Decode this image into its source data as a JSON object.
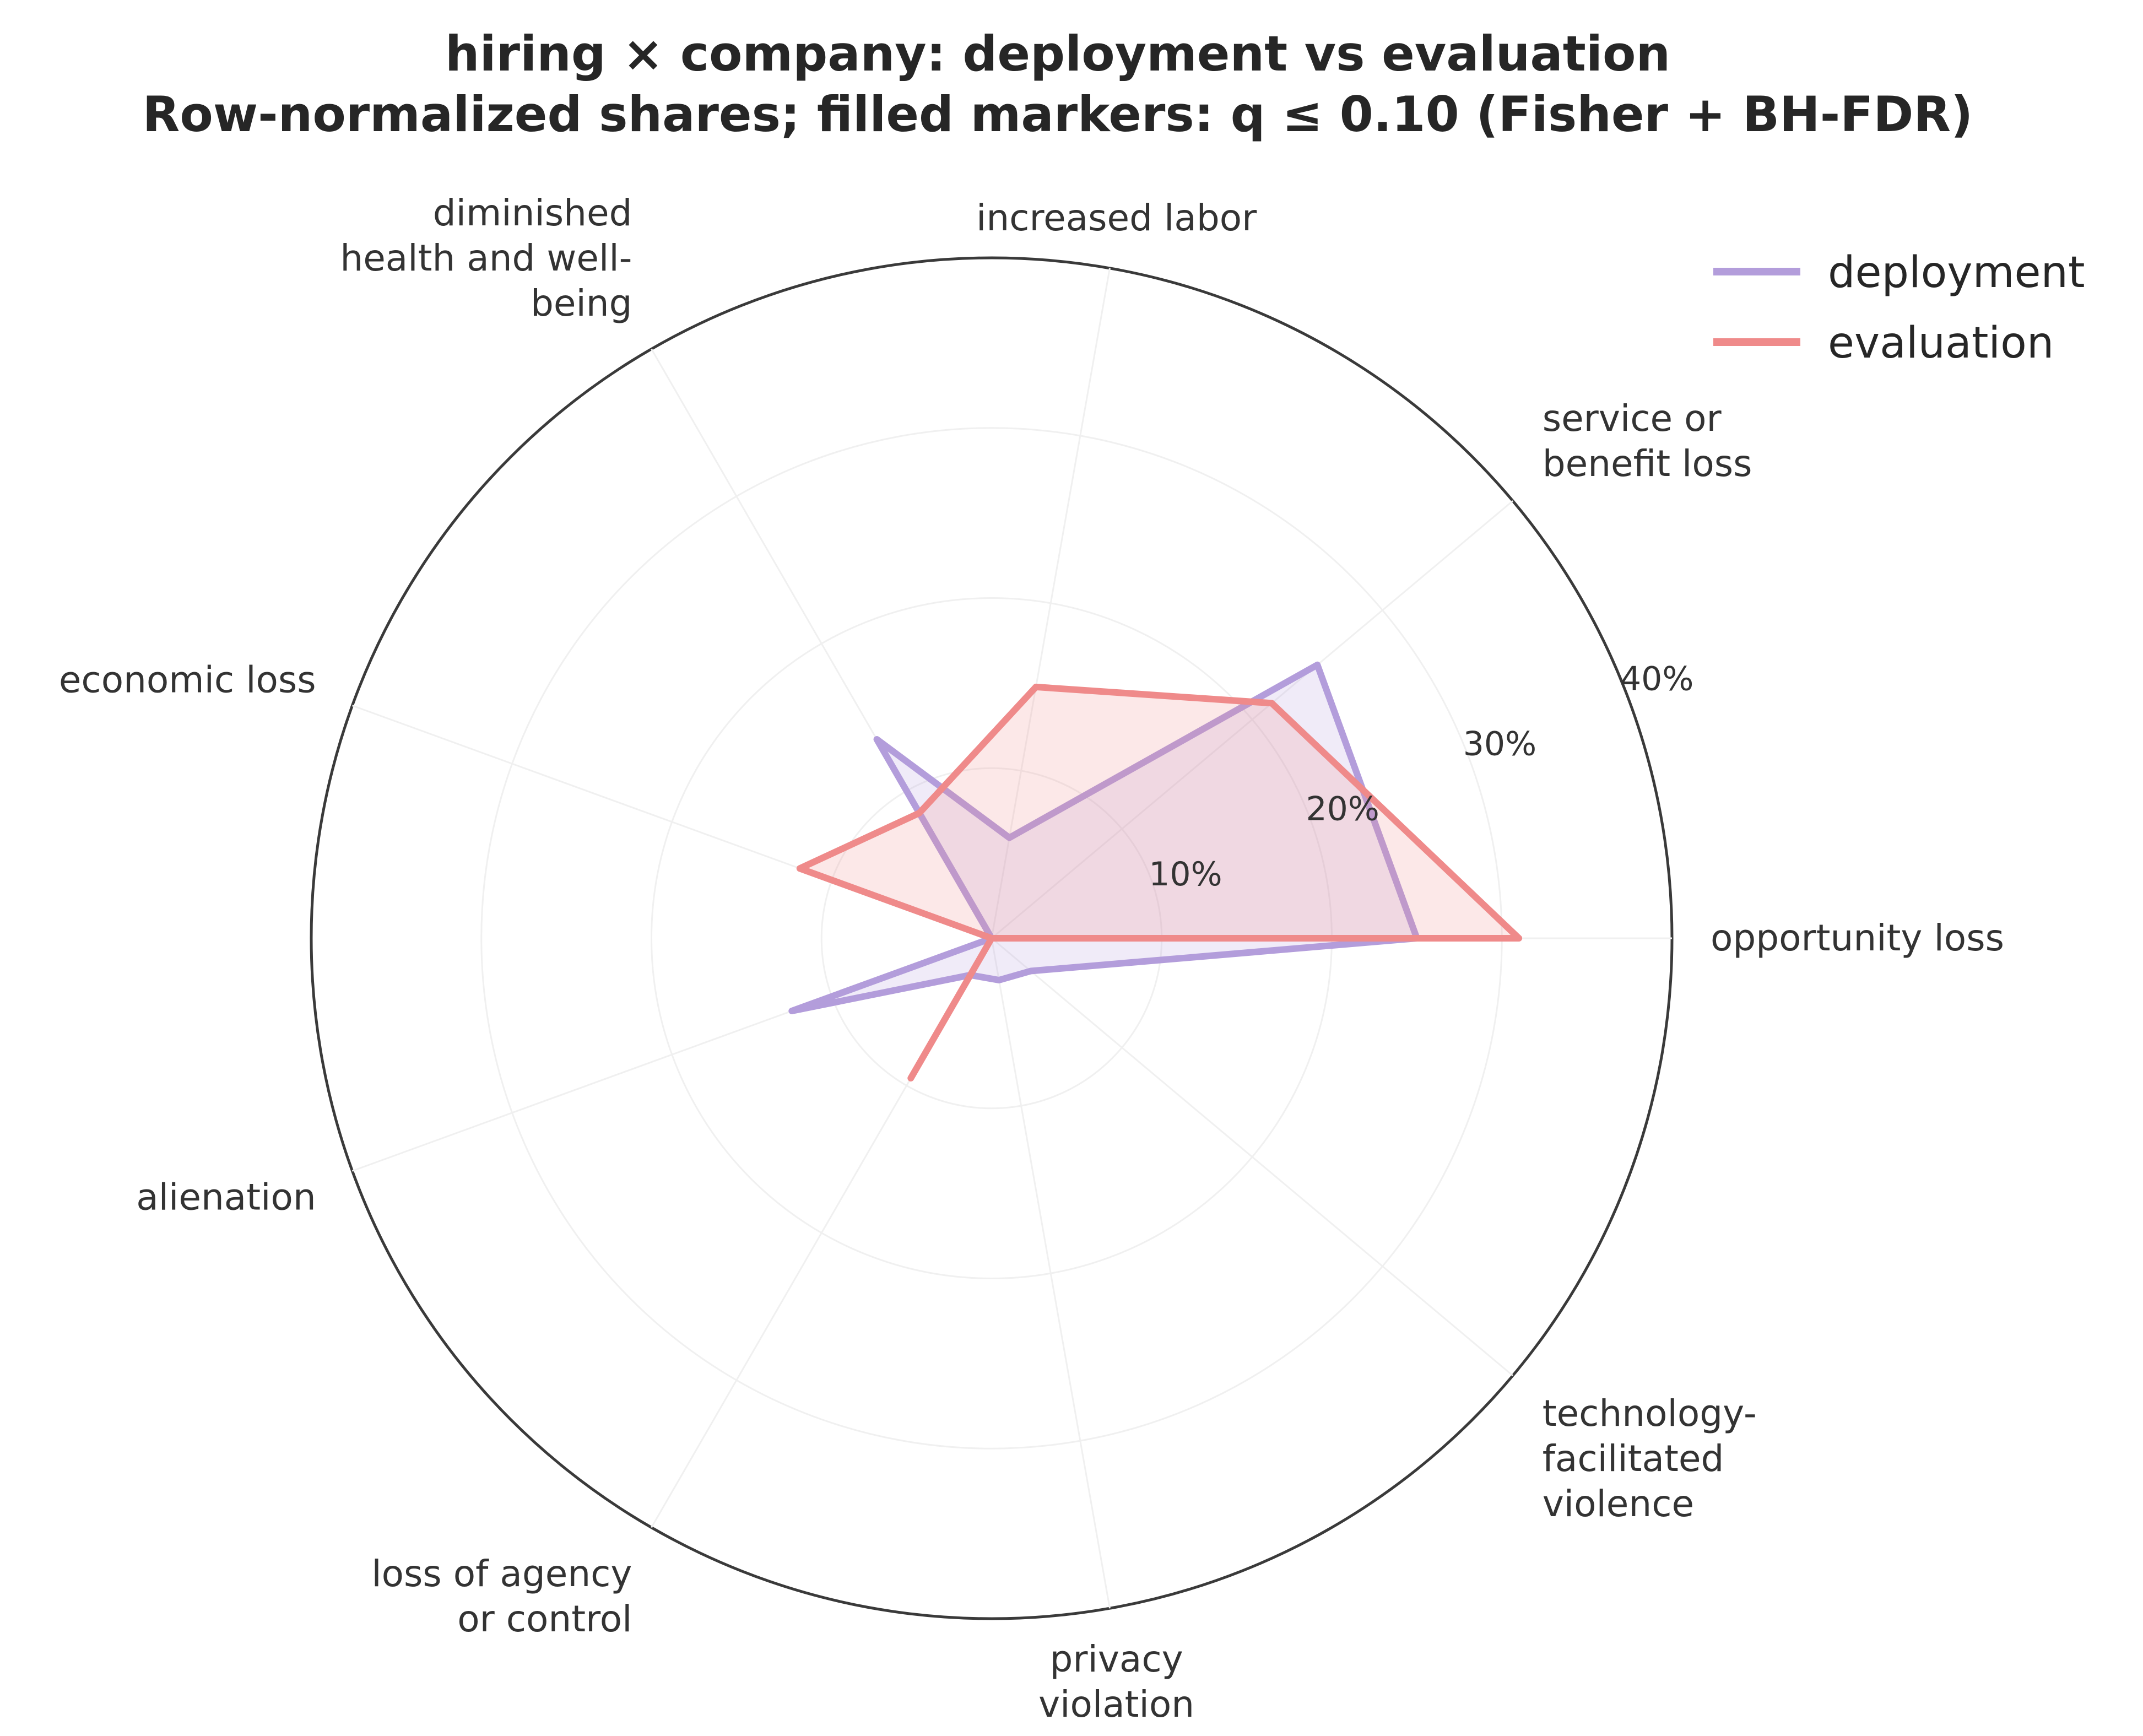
{
  "chart_data": {
    "type": "radar",
    "title": "hiring × company: deployment vs evaluation",
    "subtitle": "Row-normalized shares; filled markers: q ≤ 0.10 (Fisher + BH-FDR)",
    "categories": [
      "opportunity loss",
      "service or\nbenefit loss",
      "increased labor",
      "diminished\nhealth and well-\nbeing",
      "economic loss",
      "alienation",
      "loss of agency\nor control",
      "privacy\nviolation",
      "technology-\nfacilitated\nviolence"
    ],
    "r_ticks": [
      10,
      20,
      30,
      40
    ],
    "r_tick_labels": [
      "10%",
      "20%",
      "30%",
      "40%"
    ],
    "rlim": [
      0,
      40
    ],
    "angular_offset_deg": 0,
    "legend_position": "top-right",
    "series": [
      {
        "name": "deployment",
        "color": "#b39ddb",
        "values": [
          25.0,
          25.0,
          6.0,
          13.5,
          0.0,
          12.5,
          2.5,
          2.5,
          3.0
        ]
      },
      {
        "name": "evaluation",
        "color": "#ef8a8a",
        "values": [
          31.0,
          21.5,
          15.0,
          8.5,
          12.0,
          0.0,
          9.5,
          0.0,
          0.0
        ]
      }
    ]
  }
}
